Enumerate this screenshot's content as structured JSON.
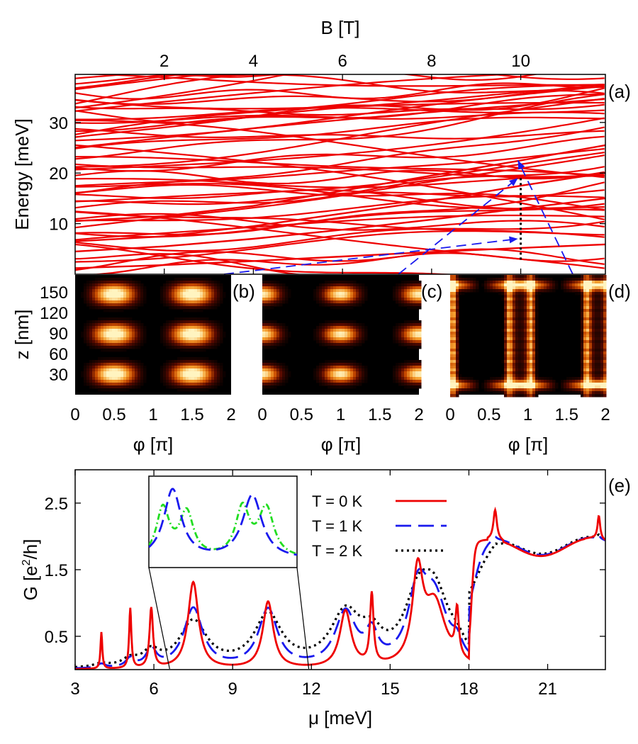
{
  "panels": {
    "a": {
      "label": "(a)",
      "x_label": "B [T]",
      "y_label": "Energy [meV]",
      "x_range": [
        0,
        11.9
      ],
      "y_range": [
        0,
        39.5
      ],
      "x_ticks": [
        2,
        4,
        6,
        8,
        10
      ],
      "y_ticks": [
        10,
        20,
        30
      ],
      "line_color": "#ee0000",
      "marker_B": 10,
      "marker_energies": [
        7,
        19,
        22.5
      ]
    },
    "b": {
      "label": "(b)"
    },
    "c": {
      "label": "(c)"
    },
    "d": {
      "label": "(d)"
    },
    "density": {
      "z_label": "z [nm]",
      "phi_label": "φ [π]",
      "z_ticks": [
        30,
        60,
        90,
        120,
        150
      ],
      "z_range": [
        0,
        175
      ],
      "phi_ticks": [
        "0",
        "0.5",
        "1",
        "1.5",
        "2"
      ],
      "phi_range": [
        0,
        2
      ],
      "colormap": [
        "#000000",
        "#5a0a00",
        "#c84a00",
        "#f5a030",
        "#fff4c0"
      ]
    },
    "e": {
      "label": "(e)",
      "x_label": "μ [meV]",
      "y_label": "G [e²/h]",
      "x_range": [
        3,
        23.2
      ],
      "y_range": [
        0,
        3.0
      ],
      "x_ticks": [
        3,
        6,
        9,
        12,
        15,
        18,
        21
      ],
      "y_ticks": [
        0.5,
        1.5,
        2.5
      ],
      "inset_range": [
        6.6,
        11.9
      ]
    }
  },
  "chart_data": [
    {
      "type": "line",
      "panel": "a",
      "title": "",
      "xlabel": "B [T]",
      "ylabel": "Energy [meV]",
      "xlim": [
        0,
        11.9
      ],
      "ylim": [
        0,
        39.5
      ],
      "description_series": "Energy levels vs magnetic field (many red curves)",
      "series": [
        {
          "values_at_B": [
            0,
            2,
            4,
            6,
            8,
            10,
            11.9
          ],
          "y": [
            1.2,
            1.8,
            2.6,
            3.5,
            4.4,
            5.2,
            5.9
          ]
        },
        {
          "values_at_B": [
            0,
            2,
            4,
            6,
            8,
            10,
            11.9
          ],
          "y": [
            4.5,
            5.5,
            7.0,
            8.8,
            10.8,
            13.0,
            15.0
          ]
        },
        {
          "values_at_B": [
            0,
            2,
            4,
            6,
            8,
            10,
            11.9
          ],
          "y": [
            6.5,
            7.5,
            9.5,
            12.0,
            14.5,
            17.5,
            20.0
          ]
        },
        {
          "values_at_B": [
            0,
            2,
            4,
            6,
            8,
            10,
            11.9
          ],
          "y": [
            10.5,
            11.5,
            13.5,
            16.5,
            19.5,
            22.5,
            25.5
          ]
        }
      ]
    },
    {
      "type": "line",
      "panel": "e",
      "title": "",
      "xlabel": "μ [meV]",
      "ylabel": "G [e²/h]",
      "xlim": [
        3,
        23.2
      ],
      "ylim": [
        0,
        3.0
      ],
      "legend_position": "top-right",
      "series": [
        {
          "name": "T = 0 K",
          "color": "#ee0000",
          "style": "solid"
        },
        {
          "name": "T = 1 K",
          "color": "#1a1aee",
          "style": "dashed"
        },
        {
          "name": "T = 2 K",
          "color": "#000000",
          "style": "dotted"
        }
      ],
      "inset_series": [
        {
          "color": "#1a1aee",
          "style": "dashed"
        },
        {
          "color": "#22dd22",
          "style": "dash-dot"
        }
      ]
    }
  ]
}
